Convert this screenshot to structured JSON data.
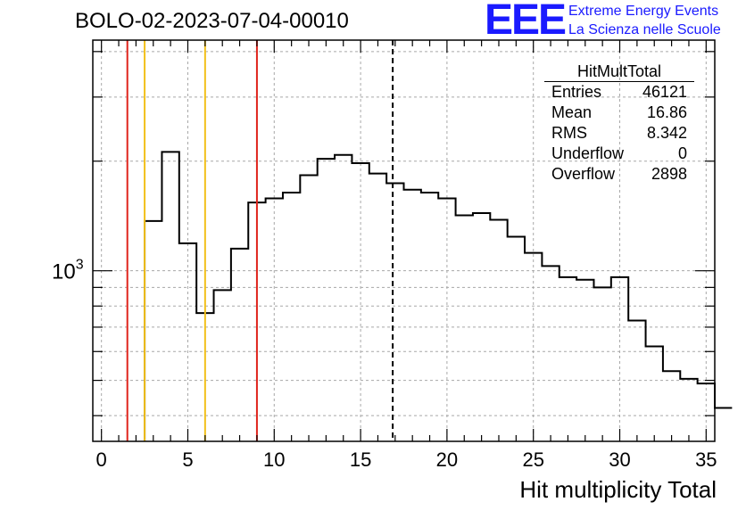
{
  "header": {
    "title": "BOLO-02-2023-07-04-00010",
    "logo_text": "EEE",
    "logo_line1": "Extreme Energy Events",
    "logo_line2": "La Scienza nelle Scuole"
  },
  "stats_box": {
    "title": "HitMultTotal",
    "rows": [
      {
        "label": "Entries",
        "value": "46121"
      },
      {
        "label": "Mean",
        "value": "16.86"
      },
      {
        "label": "RMS",
        "value": "8.342"
      },
      {
        "label": "Underflow",
        "value": "0"
      },
      {
        "label": "Overflow",
        "value": "2898"
      }
    ]
  },
  "chart_data": {
    "type": "bar",
    "histogram": true,
    "title": "BOLO-02-2023-07-04-00010",
    "xlabel": "Hit multiplicity Total",
    "ylabel": "",
    "xlim": [
      -0.5,
      35.5
    ],
    "ylim": [
      340,
      4300
    ],
    "log_y": true,
    "grid": true,
    "bin_width": 1,
    "bin_edges_start": 2.5,
    "values": [
      1370,
      2120,
      1190,
      765,
      885,
      1150,
      1540,
      1580,
      1640,
      1830,
      2030,
      2080,
      1975,
      1850,
      1740,
      1670,
      1640,
      1580,
      1420,
      1440,
      1380,
      1240,
      1120,
      1030,
      960,
      945,
      900,
      960,
      730,
      620,
      530,
      505,
      490,
      420
    ],
    "x_ticks": [
      0,
      5,
      10,
      15,
      20,
      25,
      30,
      35
    ],
    "x_tick_labels": [
      "0",
      "5",
      "10",
      "15",
      "20",
      "25",
      "30",
      "35"
    ],
    "y_ticks": [
      1000
    ],
    "y_tick_base": "10",
    "y_tick_exp": "3",
    "vertical_lines": [
      {
        "x": 1.5,
        "color": "#e0241c",
        "style": "solid"
      },
      {
        "x": 2.5,
        "color": "#f2c01a",
        "style": "solid"
      },
      {
        "x": 6.0,
        "color": "#f2c01a",
        "style": "solid"
      },
      {
        "x": 9.0,
        "color": "#e0241c",
        "style": "solid"
      },
      {
        "x": 16.86,
        "color": "#000000",
        "style": "dashed"
      }
    ],
    "colors": {
      "histogram": "#000000",
      "grid": "#a8a8a8"
    }
  }
}
